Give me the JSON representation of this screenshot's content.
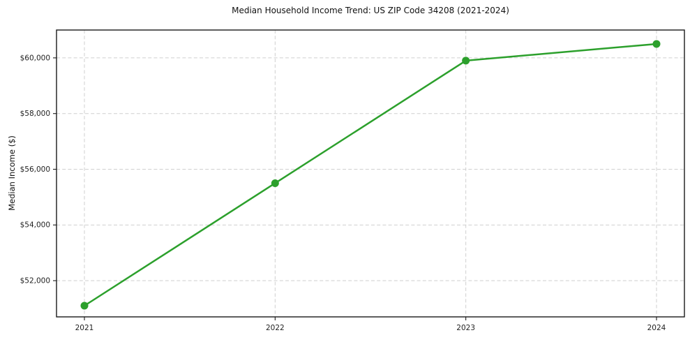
{
  "chart_data": {
    "type": "line",
    "title": "Median Household Income Trend: US ZIP Code 34208 (2021-2024)",
    "xlabel": "",
    "ylabel": "Median Income ($)",
    "categories": [
      "2021",
      "2022",
      "2023",
      "2024"
    ],
    "series": [
      {
        "name": "Median Household Income",
        "values": [
          51100,
          55500,
          59900,
          60500
        ]
      }
    ],
    "yticks": [
      52000,
      54000,
      56000,
      58000,
      60000
    ],
    "ytick_labels": [
      "$52,000",
      "$54,000",
      "$56,000",
      "$58,000",
      "$60,000"
    ],
    "ylim": [
      50700,
      61000
    ],
    "grid": "dashed, both axes",
    "legend": "none",
    "line_color": "#2ca02c",
    "marker": "circle",
    "grid_color": "#cfcfcf",
    "frame_color": "#1a1a1a",
    "background": "#ffffff"
  }
}
